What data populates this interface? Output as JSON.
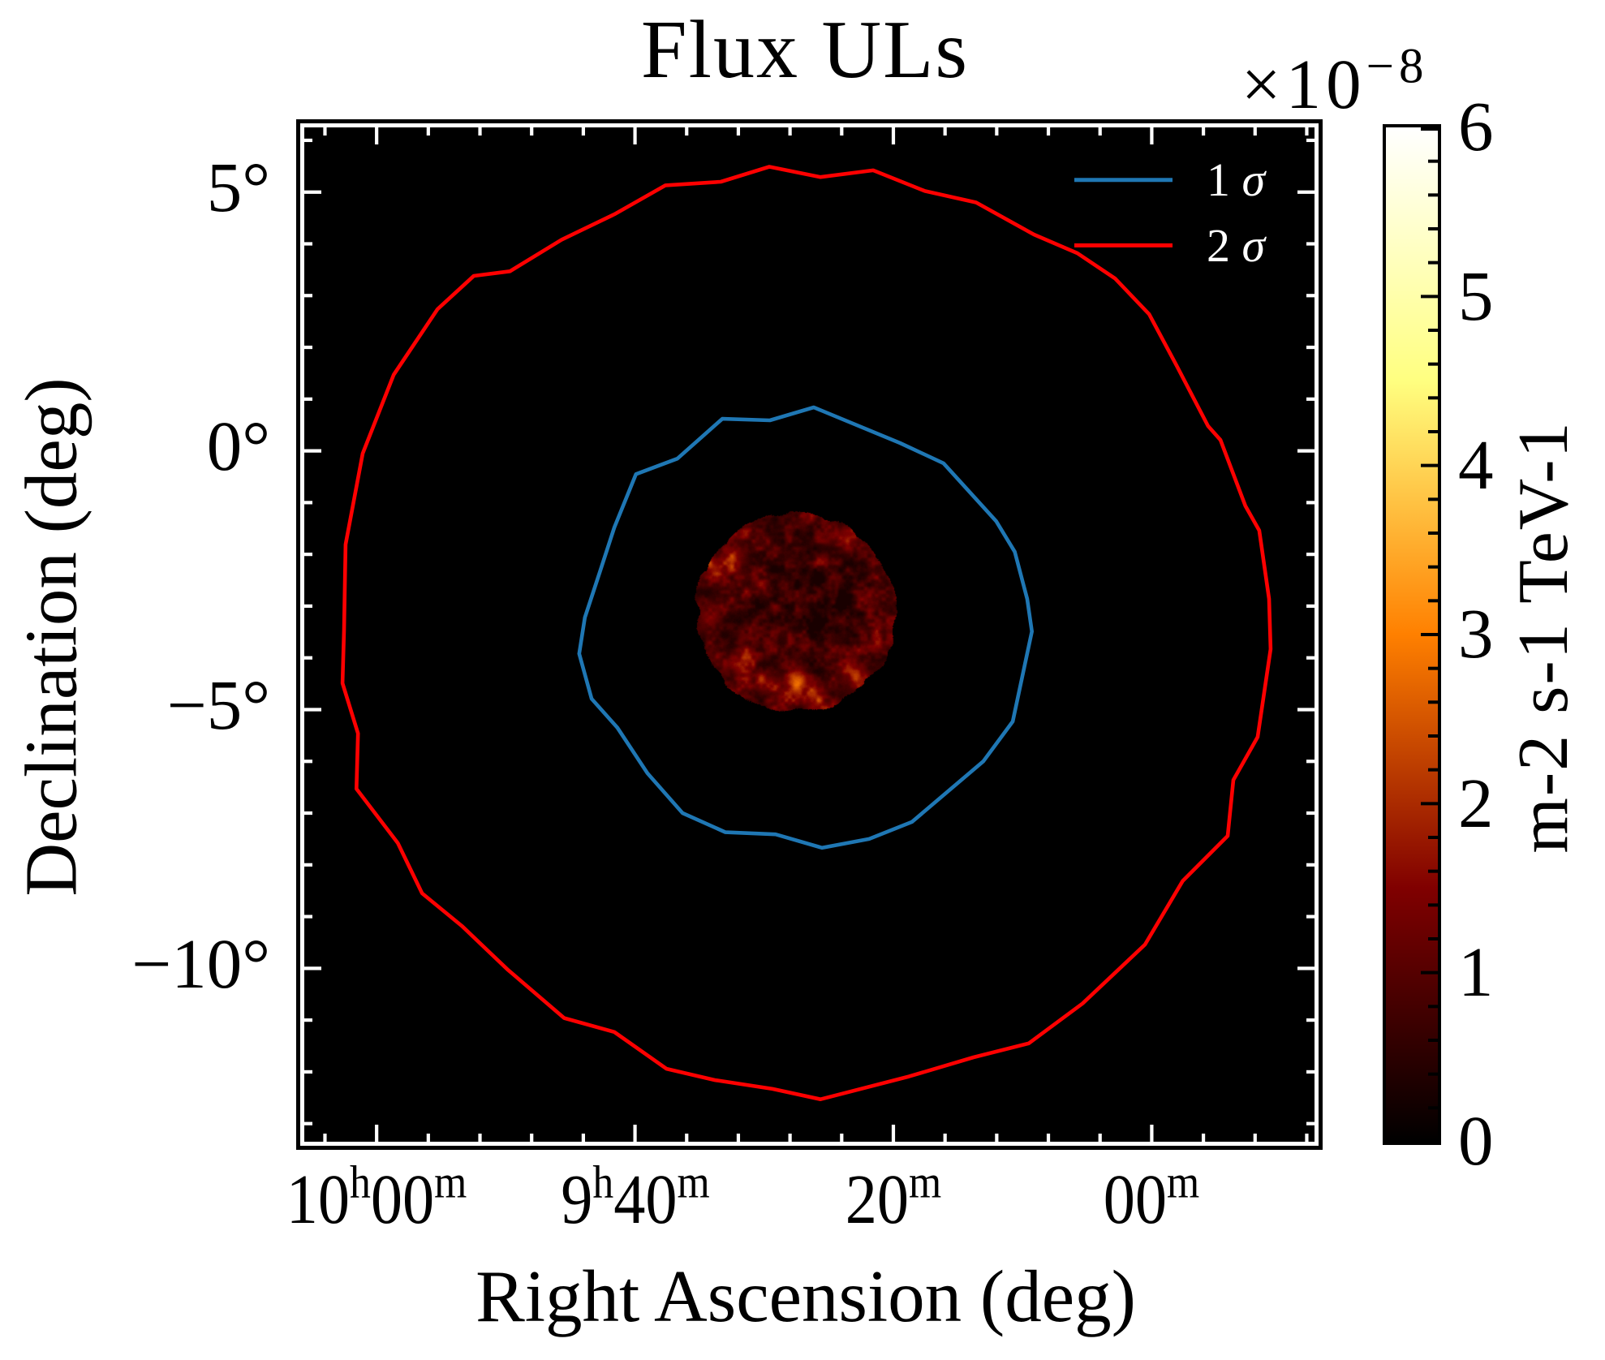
{
  "chart_data": {
    "type": "heatmap",
    "title": "Flux ULs",
    "xlabel": "Right Ascension (deg)",
    "ylabel": "Declination (deg)",
    "background_color": "#000000",
    "x_axis": {
      "coordinate": "right ascension",
      "ra_left_deg": 151.4,
      "ra_right_deg": 131.85,
      "minor_step_deg": 1.0,
      "major_ticks": [
        {
          "ra_deg": 150.0,
          "parts": [
            {
              "t": "10"
            },
            {
              "t": "h",
              "sup": 1
            },
            {
              "t": "00"
            },
            {
              "t": "m",
              "sup": 1
            }
          ]
        },
        {
          "ra_deg": 145.0,
          "parts": [
            {
              "t": "9"
            },
            {
              "t": "h",
              "sup": 1
            },
            {
              "t": "40"
            },
            {
              "t": "m",
              "sup": 1
            }
          ]
        },
        {
          "ra_deg": 140.0,
          "parts": [
            {
              "t": "20"
            },
            {
              "t": "m",
              "sup": 1
            }
          ]
        },
        {
          "ra_deg": 135.0,
          "parts": [
            {
              "t": "00"
            },
            {
              "t": "m",
              "sup": 1
            }
          ]
        }
      ]
    },
    "y_axis": {
      "coordinate": "declination",
      "dec_top_deg": 6.25,
      "dec_bottom_deg": -13.35,
      "minor_step_deg": 1.0,
      "major_ticks": [
        {
          "dec_deg": 5.0,
          "label": "5°"
        },
        {
          "dec_deg": 0.0,
          "label": "0°"
        },
        {
          "dec_deg": -5.0,
          "label": "−5°"
        },
        {
          "dec_deg": -10.0,
          "label": "−10°"
        }
      ]
    },
    "legend": {
      "items": [
        {
          "num": "1",
          "sym": "σ",
          "color": "#1f77b4"
        },
        {
          "num": "2",
          "sym": "σ",
          "color": "#ff0000"
        }
      ]
    },
    "colorbar": {
      "label": "m-2 s-1 TeV-1",
      "offset_main": "×10",
      "offset_exp": "−8",
      "vmin": 0,
      "vmax": 6,
      "major_ticks": [
        "0",
        "1",
        "2",
        "3",
        "4",
        "5",
        "6"
      ],
      "minor_step": 0.2,
      "colormap": "afmhot",
      "gradient_stops": [
        {
          "at": 0.0,
          "color": "#000000"
        },
        {
          "at": 0.25,
          "color": "#800000"
        },
        {
          "at": 0.5,
          "color": "#ff8000"
        },
        {
          "at": 0.75,
          "color": "#ffff80"
        },
        {
          "at": 1.0,
          "color": "#ffffff"
        }
      ]
    },
    "contours": [
      {
        "name": "1 sigma",
        "sigma": 1,
        "color": "#1f77b4",
        "points_ra_dec": [
          [
            143.31,
            0.62
          ],
          [
            142.39,
            0.59
          ],
          [
            141.54,
            0.84
          ],
          [
            139.87,
            0.15
          ],
          [
            139.03,
            -0.24
          ],
          [
            138.01,
            -1.36
          ],
          [
            137.65,
            -1.95
          ],
          [
            137.41,
            -2.86
          ],
          [
            137.32,
            -3.49
          ],
          [
            137.69,
            -5.23
          ],
          [
            138.26,
            -6.0
          ],
          [
            139.64,
            -7.17
          ],
          [
            140.47,
            -7.5
          ],
          [
            141.38,
            -7.67
          ],
          [
            142.28,
            -7.41
          ],
          [
            143.25,
            -7.37
          ],
          [
            144.08,
            -7.0
          ],
          [
            144.76,
            -6.23
          ],
          [
            145.34,
            -5.35
          ],
          [
            145.84,
            -4.79
          ],
          [
            146.08,
            -3.92
          ],
          [
            145.97,
            -3.22
          ],
          [
            145.67,
            -2.31
          ],
          [
            145.4,
            -1.48
          ],
          [
            144.98,
            -0.45
          ],
          [
            144.18,
            -0.15
          ]
        ]
      },
      {
        "name": "2 sigma",
        "sigma": 2,
        "color": "#ff0000",
        "points_ra_dec": [
          [
            142.4,
            5.49
          ],
          [
            141.41,
            5.29
          ],
          [
            140.39,
            5.42
          ],
          [
            139.39,
            5.02
          ],
          [
            138.4,
            4.8
          ],
          [
            137.28,
            4.18
          ],
          [
            136.44,
            3.82
          ],
          [
            135.71,
            3.33
          ],
          [
            135.05,
            2.64
          ],
          [
            134.52,
            1.65
          ],
          [
            133.91,
            0.48
          ],
          [
            133.67,
            0.21
          ],
          [
            133.19,
            -1.06
          ],
          [
            132.92,
            -1.54
          ],
          [
            132.73,
            -2.86
          ],
          [
            132.7,
            -3.83
          ],
          [
            132.95,
            -5.53
          ],
          [
            133.42,
            -6.36
          ],
          [
            133.53,
            -7.44
          ],
          [
            134.4,
            -8.31
          ],
          [
            135.13,
            -9.54
          ],
          [
            136.34,
            -10.68
          ],
          [
            137.38,
            -11.45
          ],
          [
            138.45,
            -11.72
          ],
          [
            139.7,
            -12.09
          ],
          [
            141.41,
            -12.53
          ],
          [
            142.34,
            -12.33
          ],
          [
            143.45,
            -12.16
          ],
          [
            144.39,
            -11.94
          ],
          [
            145.4,
            -11.23
          ],
          [
            146.37,
            -10.96
          ],
          [
            147.47,
            -10.02
          ],
          [
            148.35,
            -9.18
          ],
          [
            149.12,
            -8.55
          ],
          [
            149.59,
            -7.58
          ],
          [
            150.39,
            -6.53
          ],
          [
            150.36,
            -5.46
          ],
          [
            150.66,
            -4.49
          ],
          [
            150.63,
            -3.46
          ],
          [
            150.6,
            -1.81
          ],
          [
            150.27,
            -0.05
          ],
          [
            149.67,
            1.47
          ],
          [
            148.82,
            2.74
          ],
          [
            148.12,
            3.38
          ],
          [
            147.42,
            3.47
          ],
          [
            146.42,
            4.08
          ],
          [
            145.4,
            4.57
          ],
          [
            144.41,
            5.13
          ],
          [
            143.34,
            5.2
          ]
        ]
      }
    ],
    "flux_ul_map": {
      "description": "circular flux upper-limit map, afmhot colormap, values ×10⁻⁸ m-2 s-1 TeV-1",
      "center_ra_deg": 141.89,
      "center_dec_deg": -3.12,
      "radius_deg": 1.92,
      "edge_noise_deg": 0.063,
      "seed": 11,
      "base_value": 0.38,
      "noise_gain": 1.42,
      "noise_exponent": 1.7,
      "noise_contrast": 1.4,
      "noise_scales_deg": [
        0.28,
        0.14,
        0.07
      ],
      "noise_weights": [
        0.45,
        0.33,
        0.22
      ],
      "hotspots": [
        {
          "dra_deg": -0.04,
          "ddec_deg": -1.31,
          "r_deg": 0.133,
          "amp": 2.05
        },
        {
          "dra_deg": -1.0,
          "ddec_deg": 1.46,
          "r_deg": 0.188,
          "amp": 0.95
        },
        {
          "dra_deg": 1.57,
          "ddec_deg": 0.86,
          "r_deg": 0.173,
          "amp": 0.95
        },
        {
          "dra_deg": 1.7,
          "ddec_deg": -0.11,
          "r_deg": 0.157,
          "amp": 0.85
        },
        {
          "dra_deg": 1.13,
          "ddec_deg": 1.08,
          "r_deg": 0.173,
          "amp": 0.85
        },
        {
          "dra_deg": 1.05,
          "ddec_deg": -0.94,
          "r_deg": 0.173,
          "amp": 0.95
        },
        {
          "dra_deg": -0.33,
          "ddec_deg": -1.62,
          "r_deg": 0.173,
          "amp": 0.85
        },
        {
          "dra_deg": -1.13,
          "ddec_deg": -1.22,
          "r_deg": 0.204,
          "amp": 0.95
        },
        {
          "dra_deg": 0.47,
          "ddec_deg": -1.38,
          "r_deg": 0.157,
          "amp": 0.85
        },
        {
          "dra_deg": -0.63,
          "ddec_deg": 0.16,
          "r_deg": 0.66,
          "amp": -0.33
        },
        {
          "dra_deg": 0.39,
          "ddec_deg": 0.78,
          "r_deg": 0.55,
          "amp": -0.15
        }
      ]
    }
  }
}
